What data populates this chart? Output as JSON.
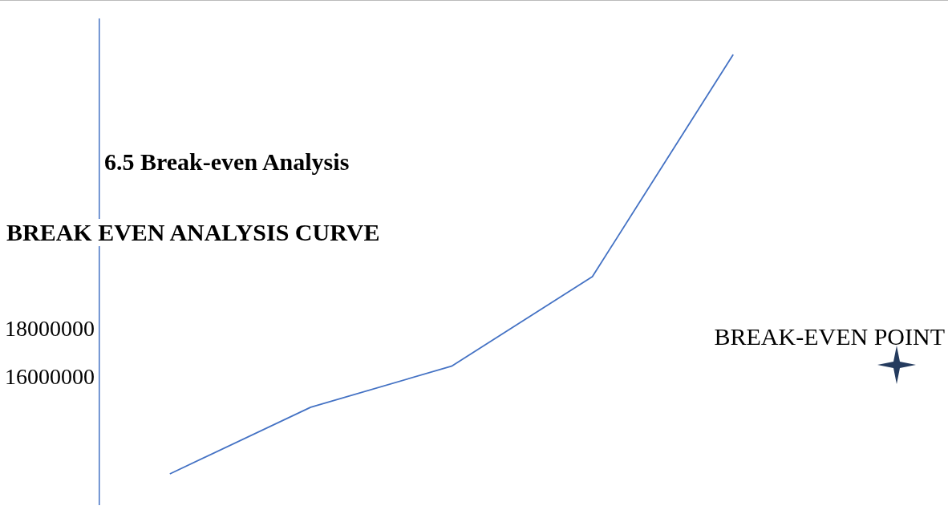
{
  "chart_data": {
    "type": "line",
    "title": "6.5 Break-even Analysis",
    "subtitle": "BREAK EVEN ANALYSIS CURVE",
    "categories": [
      null,
      null,
      null,
      null,
      null
    ],
    "values": [
      12060000,
      14810000,
      16500000,
      20190000,
      29340000
    ],
    "color": "#4472c4",
    "ylim": [
      10800000,
      30800000
    ],
    "yticks": [
      16000000,
      18000000
    ],
    "grid": false,
    "legend": false,
    "marker": "none",
    "line_style": "solid",
    "annotations": [
      "BREAK-EVEN POINT"
    ]
  }
}
